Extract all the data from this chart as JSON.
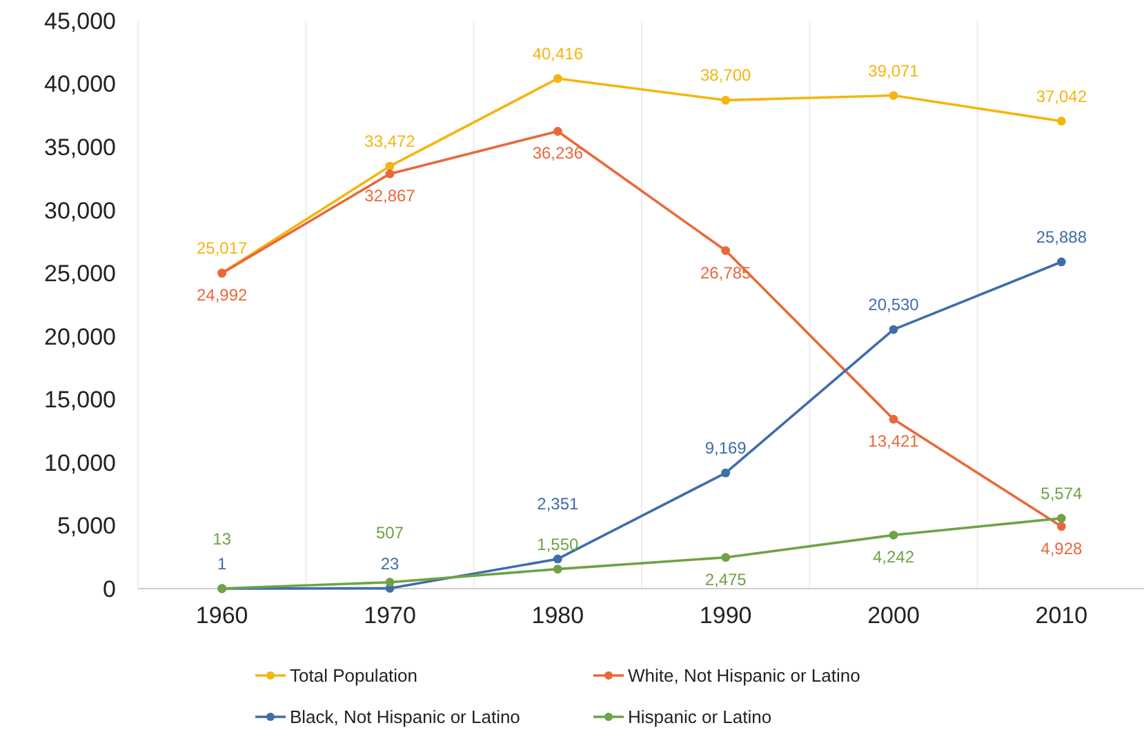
{
  "chart_data": {
    "type": "line",
    "categories": [
      "1960",
      "1970",
      "1980",
      "1990",
      "2000",
      "2010"
    ],
    "series": [
      {
        "name": "Total Population",
        "color": "#f5b50f",
        "values": [
          25017,
          33472,
          40416,
          38700,
          39071,
          37042
        ],
        "value_labels": [
          "25,017",
          "33,472",
          "40,416",
          "38,700",
          "39,071",
          "37,042"
        ]
      },
      {
        "name": "White, Not Hispanic or Latino",
        "color": "#e9683a",
        "values": [
          24992,
          32867,
          36236,
          26785,
          13421,
          4928
        ],
        "value_labels": [
          "24,992",
          "32,867",
          "36,236",
          "26,785",
          "13,421",
          "4,928"
        ]
      },
      {
        "name": "Black, Not Hispanic or Latino",
        "color": "#3e6dab",
        "values": [
          1,
          23,
          2351,
          9169,
          20530,
          25888
        ],
        "value_labels": [
          "1",
          "23",
          "2,351",
          "9,169",
          "20,530",
          "25,888"
        ]
      },
      {
        "name": "Hispanic or Latino",
        "color": "#6ea345",
        "values": [
          13,
          507,
          1550,
          2475,
          4242,
          5574
        ],
        "value_labels": [
          "13",
          "507",
          "1,550",
          "2,475",
          "4,242",
          "5,574"
        ]
      }
    ],
    "ylim": [
      0,
      45000
    ],
    "yticks": [
      0,
      {
        "value": 5000,
        "label": "5,000"
      },
      {
        "value": 10000,
        "label": "10,000"
      },
      {
        "value": 15000,
        "label": "15,000"
      },
      {
        "value": 20000,
        "label": "20,000"
      },
      {
        "value": 25000,
        "label": "25,000"
      },
      {
        "value": 30000,
        "label": "30,000"
      },
      {
        "value": 35000,
        "label": "35,000"
      },
      {
        "value": 40000,
        "label": "40,000"
      },
      {
        "value": 45000,
        "label": "45,000"
      }
    ],
    "grid": "x",
    "legend": "bottom",
    "marker": "circle",
    "line_style": "solid"
  }
}
